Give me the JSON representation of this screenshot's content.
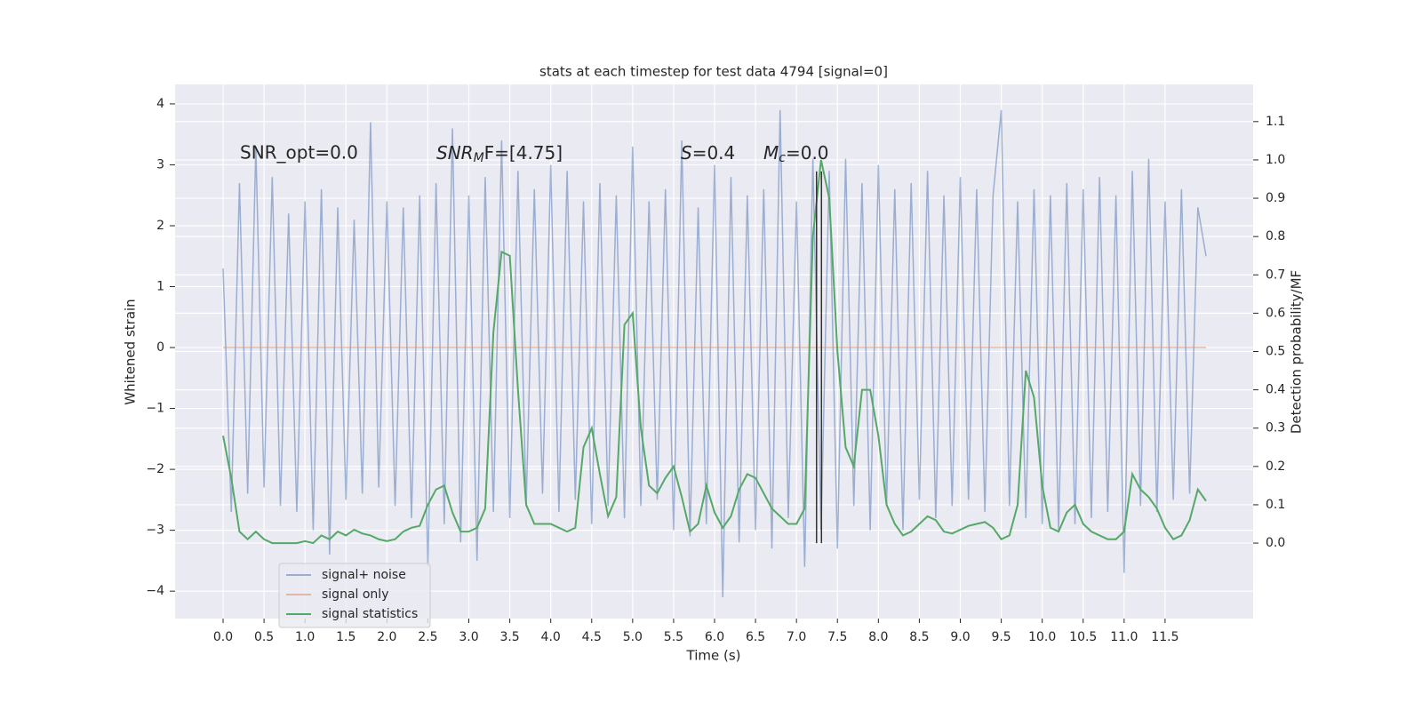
{
  "chart_data": {
    "type": "line",
    "title": "stats at each timestep for test data 4794 [signal=0]",
    "xlabel": "Time (s)",
    "ylabel": "Whitened strain",
    "y2label": "Detection probability/MF",
    "annotations": [
      "SNR_opt=0.0",
      {
        "main": "SNR",
        "sub": "M",
        "rest": "F=[4.75]"
      },
      {
        "main": "S",
        "rest": "=0.4"
      },
      {
        "main": "M",
        "sub": "c",
        "rest": "=0.0"
      }
    ],
    "x": [
      0.0,
      0.1,
      0.2,
      0.3,
      0.4,
      0.5,
      0.6,
      0.7,
      0.8,
      0.9,
      1.0,
      1.1,
      1.2,
      1.3,
      1.4,
      1.5,
      1.6,
      1.7,
      1.8,
      1.9,
      2.0,
      2.1,
      2.2,
      2.3,
      2.4,
      2.5,
      2.6,
      2.7,
      2.8,
      2.9,
      3.0,
      3.1,
      3.2,
      3.3,
      3.4,
      3.5,
      3.6,
      3.7,
      3.8,
      3.9,
      4.0,
      4.1,
      4.2,
      4.3,
      4.4,
      4.5,
      4.6,
      4.7,
      4.8,
      4.9,
      5.0,
      5.1,
      5.2,
      5.3,
      5.4,
      5.5,
      5.6,
      5.7,
      5.8,
      5.9,
      6.0,
      6.1,
      6.2,
      6.3,
      6.4,
      6.5,
      6.6,
      6.7,
      6.8,
      6.9,
      7.0,
      7.1,
      7.2,
      7.3,
      7.4,
      7.5,
      7.6,
      7.7,
      7.8,
      7.9,
      8.0,
      8.1,
      8.2,
      8.3,
      8.4,
      8.5,
      8.6,
      8.7,
      8.8,
      8.9,
      9.0,
      9.1,
      9.2,
      9.3,
      9.4,
      9.5,
      9.6,
      9.7,
      9.8,
      9.9,
      10.0,
      10.1,
      10.2,
      10.3,
      10.4,
      10.5,
      10.6,
      10.7,
      10.8,
      10.9,
      11.0,
      11.1,
      11.2,
      11.3,
      11.4,
      11.5,
      11.6,
      11.7,
      11.8,
      11.9,
      12.0
    ],
    "series": [
      {
        "name": "signal+ noise",
        "color": "#4c72b0",
        "alpha": 0.5,
        "values": [
          1.3,
          -2.7,
          2.7,
          -2.4,
          3.3,
          -2.3,
          2.8,
          -2.6,
          2.2,
          -2.7,
          2.4,
          -3.0,
          2.6,
          -3.4,
          2.3,
          -2.5,
          2.1,
          -2.4,
          3.7,
          -2.3,
          2.4,
          -2.6,
          2.3,
          -2.8,
          2.5,
          -3.6,
          2.7,
          -2.9,
          3.6,
          -3.2,
          2.5,
          -3.5,
          2.8,
          -2.7,
          3.4,
          -2.8,
          2.9,
          -2.6,
          2.6,
          -2.4,
          3.0,
          -2.7,
          2.9,
          -2.5,
          2.4,
          -2.9,
          2.7,
          -2.6,
          2.5,
          -2.8,
          3.3,
          -2.6,
          2.4,
          -2.5,
          2.6,
          -3.0,
          3.4,
          -3.1,
          2.3,
          -2.9,
          3.0,
          -4.1,
          2.8,
          -3.2,
          2.5,
          -3.0,
          2.6,
          -3.3,
          3.9,
          -2.8,
          2.4,
          -3.6,
          3.1,
          -3.0,
          2.9,
          -3.3,
          3.1,
          -2.6,
          2.7,
          -3.0,
          3.0,
          -2.6,
          2.6,
          -3.0,
          2.7,
          -2.5,
          2.9,
          -2.8,
          2.5,
          -2.6,
          2.8,
          -2.5,
          2.6,
          -2.7,
          2.5,
          3.9,
          -2.6,
          2.4,
          -2.8,
          2.6,
          -2.9,
          2.5,
          -3.0,
          2.7,
          -2.9,
          2.6,
          -2.8,
          2.8,
          -2.7,
          2.5,
          -3.7,
          2.9,
          -2.6,
          3.1,
          -2.7,
          2.4,
          -2.5,
          2.6,
          -2.4,
          2.3,
          1.5
        ]
      },
      {
        "name": "signal only",
        "color": "#dd8452",
        "alpha": 0.5,
        "values": [
          0,
          0,
          0,
          0,
          0,
          0,
          0,
          0,
          0,
          0,
          0,
          0,
          0,
          0,
          0,
          0,
          0,
          0,
          0,
          0,
          0,
          0,
          0,
          0,
          0,
          0,
          0,
          0,
          0,
          0,
          0,
          0,
          0,
          0,
          0,
          0,
          0,
          0,
          0,
          0,
          0,
          0,
          0,
          0,
          0,
          0,
          0,
          0,
          0,
          0,
          0,
          0,
          0,
          0,
          0,
          0,
          0,
          0,
          0,
          0,
          0,
          0,
          0,
          0,
          0,
          0,
          0,
          0,
          0,
          0,
          0,
          0,
          0,
          0,
          0,
          0,
          0,
          0,
          0,
          0,
          0,
          0,
          0,
          0,
          0,
          0,
          0,
          0,
          0,
          0,
          0,
          0,
          0,
          0,
          0,
          0,
          0,
          0,
          0,
          0,
          0,
          0,
          0,
          0,
          0,
          0,
          0,
          0,
          0,
          0,
          0,
          0,
          0,
          0,
          0,
          0,
          0,
          0,
          0,
          0,
          0
        ]
      },
      {
        "name": "signal statistics",
        "color": "#55a868",
        "alpha": 1,
        "axis": "y2",
        "values": [
          0.28,
          0.17,
          0.03,
          0.01,
          0.03,
          0.01,
          0.0,
          0.0,
          0.0,
          0.0,
          0.005,
          0.0,
          0.02,
          0.01,
          0.03,
          0.02,
          0.035,
          0.025,
          0.02,
          0.01,
          0.005,
          0.01,
          0.03,
          0.04,
          0.045,
          0.1,
          0.14,
          0.15,
          0.08,
          0.03,
          0.03,
          0.04,
          0.09,
          0.55,
          0.76,
          0.75,
          0.4,
          0.1,
          0.05,
          0.05,
          0.05,
          0.04,
          0.03,
          0.04,
          0.25,
          0.3,
          0.18,
          0.07,
          0.12,
          0.57,
          0.6,
          0.3,
          0.15,
          0.13,
          0.17,
          0.2,
          0.12,
          0.03,
          0.05,
          0.15,
          0.08,
          0.04,
          0.07,
          0.14,
          0.18,
          0.17,
          0.13,
          0.09,
          0.07,
          0.05,
          0.05,
          0.09,
          0.8,
          1.0,
          0.9,
          0.5,
          0.25,
          0.2,
          0.4,
          0.4,
          0.28,
          0.1,
          0.05,
          0.02,
          0.03,
          0.05,
          0.07,
          0.06,
          0.03,
          0.025,
          0.035,
          0.045,
          0.05,
          0.055,
          0.04,
          0.01,
          0.02,
          0.1,
          0.45,
          0.38,
          0.15,
          0.04,
          0.03,
          0.08,
          0.1,
          0.05,
          0.03,
          0.02,
          0.01,
          0.01,
          0.03,
          0.18,
          0.14,
          0.12,
          0.09,
          0.04,
          0.01,
          0.02,
          0.06,
          0.14,
          0.11
        ]
      }
    ],
    "vlines": {
      "x": [
        7.245,
        7.305
      ],
      "y2min": 0,
      "y2max": 0.97,
      "color": "#333333"
    },
    "xlim": [
      -0.586,
      12.575
    ],
    "xticks": [
      {
        "value": 0,
        "label": "0.0"
      },
      0.5,
      {
        "value": 1,
        "label": "1.0"
      },
      1.5,
      {
        "value": 2,
        "label": "2.0"
      },
      2.5,
      {
        "value": 3,
        "label": "3.0"
      },
      3.5,
      {
        "value": 4,
        "label": "4.0"
      },
      4.5,
      {
        "value": 5,
        "label": "5.0"
      },
      5.5,
      {
        "value": 6,
        "label": "6.0"
      },
      6.5,
      {
        "value": 7,
        "label": "7.0"
      },
      7.5,
      {
        "value": 8,
        "label": "8.0"
      },
      8.5,
      {
        "value": 9,
        "label": "9.0"
      },
      9.5,
      {
        "value": 10,
        "label": "10.0"
      },
      10.5,
      {
        "value": 11,
        "label": "11.0"
      },
      11.5
    ],
    "ylim": [
      -4.45,
      4.32
    ],
    "yticks": [
      {
        "value": -4,
        "label": "−4"
      },
      {
        "value": -3,
        "label": "−3"
      },
      {
        "value": -2,
        "label": "−2"
      },
      {
        "value": -1,
        "label": "−1"
      },
      0,
      1,
      2,
      3,
      4
    ],
    "y2lim": [
      -0.197,
      1.197
    ],
    "y2ticks": [
      {
        "value": 0,
        "label": "0.0"
      },
      0.1,
      0.2,
      0.3,
      0.4,
      0.5,
      0.6,
      0.7,
      0.8,
      0.9,
      {
        "value": 1,
        "label": "1.0"
      },
      1.1
    ],
    "grid": true,
    "legend": "lower left"
  }
}
